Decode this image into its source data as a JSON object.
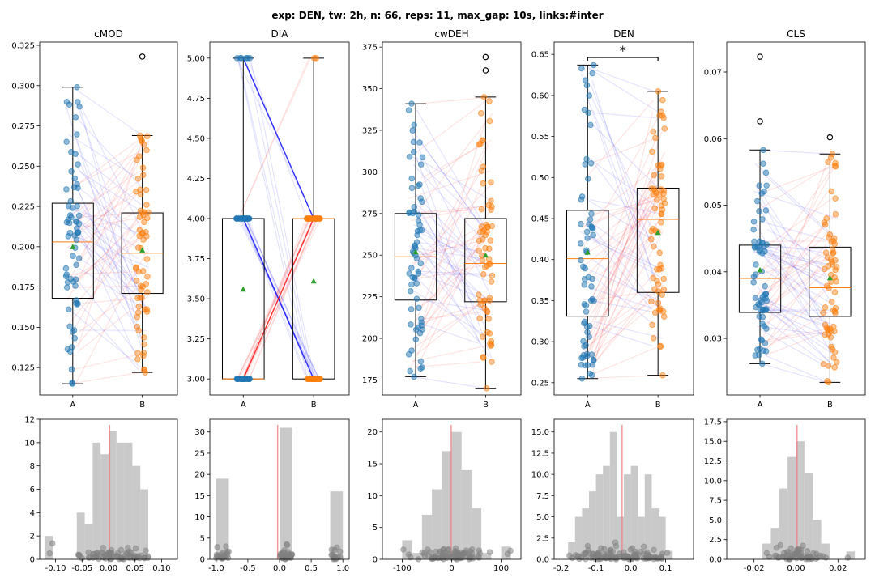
{
  "suptitle": "exp: DEN, tw: 2h, n: 66, reps: 11, max_gap: 10s, links:#inter",
  "colors": {
    "A": "#1f77b4",
    "B": "#ff7f0e",
    "median": "#ff7f0e",
    "mean": "#2ca02c",
    "line_up": "#ff0000",
    "line_down": "#0000ff",
    "hist": "#bfbfbf",
    "zero_line": "#f08080",
    "jitter": "#808080"
  },
  "chart_data": [
    {
      "type": "box",
      "title": "cMOD",
      "categories": [
        "A",
        "B"
      ],
      "ylim": [
        0.108,
        0.327
      ],
      "yticks": [
        "0.125",
        "0.150",
        "0.175",
        "0.200",
        "0.225",
        "0.250",
        "0.275",
        "0.300",
        "0.325"
      ],
      "boxes": [
        {
          "group": "A",
          "whislo": 0.115,
          "q1": 0.168,
          "median": 0.203,
          "q3": 0.227,
          "whishi": 0.299,
          "mean": 0.2,
          "fliers": []
        },
        {
          "group": "B",
          "whislo": 0.122,
          "q1": 0.171,
          "median": 0.196,
          "q3": 0.221,
          "whishi": 0.269,
          "mean": 0.198,
          "fliers": [
            0.318
          ]
        }
      ]
    },
    {
      "type": "box",
      "title": "DIA",
      "categories": [
        "A",
        "B"
      ],
      "ylim": [
        2.9,
        5.1
      ],
      "yticks": [
        "3.00",
        "3.25",
        "3.50",
        "3.75",
        "4.00",
        "4.25",
        "4.50",
        "4.75",
        "5.00"
      ],
      "boxes": [
        {
          "group": "A",
          "whislo": 3.0,
          "q1": 3.0,
          "median": 3.0,
          "q3": 4.0,
          "whishi": 5.0,
          "mean": 3.56,
          "fliers": []
        },
        {
          "group": "B",
          "whislo": 3.0,
          "q1": 3.0,
          "median": 4.0,
          "q3": 4.0,
          "whishi": 5.0,
          "mean": 3.61,
          "fliers": []
        }
      ],
      "strong_links": [
        {
          "a": 5.0,
          "b": 4.0,
          "color": "line_down"
        },
        {
          "a": 4.0,
          "b": 3.0,
          "color": "line_down"
        },
        {
          "a": 3.0,
          "b": 4.0,
          "color": "line_up"
        }
      ]
    },
    {
      "type": "box",
      "title": "cwDEH",
      "categories": [
        "A",
        "B"
      ],
      "ylim": [
        166,
        378
      ],
      "yticks": [
        "175",
        "200",
        "225",
        "250",
        "275",
        "300",
        "325",
        "350",
        "375"
      ],
      "boxes": [
        {
          "group": "A",
          "whislo": 177,
          "q1": 223,
          "median": 249,
          "q3": 275,
          "whishi": 341,
          "mean": 252,
          "fliers": []
        },
        {
          "group": "B",
          "whislo": 170,
          "q1": 222,
          "median": 245,
          "q3": 272,
          "whishi": 345,
          "mean": 250,
          "fliers": [
            361,
            369
          ]
        }
      ]
    },
    {
      "type": "box",
      "title": "DEN",
      "categories": [
        "A",
        "B"
      ],
      "ylim": [
        0.235,
        0.665
      ],
      "yticks": [
        "0.25",
        "0.30",
        "0.35",
        "0.40",
        "0.45",
        "0.50",
        "0.55",
        "0.60",
        "0.65"
      ],
      "boxes": [
        {
          "group": "A",
          "whislo": 0.255,
          "q1": 0.331,
          "median": 0.401,
          "q3": 0.46,
          "whishi": 0.637,
          "mean": 0.409,
          "fliers": []
        },
        {
          "group": "B",
          "whislo": 0.259,
          "q1": 0.36,
          "median": 0.449,
          "q3": 0.487,
          "whishi": 0.605,
          "mean": 0.433,
          "fliers": []
        }
      ],
      "significance": "*"
    },
    {
      "type": "box",
      "title": "CLS",
      "categories": [
        "A",
        "B"
      ],
      "ylim": [
        0.0215,
        0.0745
      ],
      "yticks": [
        "0.03",
        "0.04",
        "0.05",
        "0.06",
        "0.07"
      ],
      "boxes": [
        {
          "group": "A",
          "whislo": 0.0262,
          "q1": 0.0339,
          "median": 0.039,
          "q3": 0.044,
          "whishi": 0.0583,
          "mean": 0.0403,
          "fliers": [
            0.0626,
            0.0723
          ]
        },
        {
          "group": "B",
          "whislo": 0.0234,
          "q1": 0.0333,
          "median": 0.0376,
          "q3": 0.0437,
          "whishi": 0.0577,
          "mean": 0.0391,
          "fliers": [
            0.0602
          ]
        }
      ]
    },
    {
      "type": "bar",
      "subtype": "histogram",
      "xlim": [
        -0.13,
        0.13
      ],
      "ylim": [
        0,
        12
      ],
      "xticks": [
        "-0.10",
        "-0.05",
        "0.00",
        "0.05",
        "0.10"
      ],
      "yticks": [
        "0",
        "2",
        "4",
        "6",
        "8",
        "10",
        "12"
      ],
      "bins": [
        [
          -0.12,
          -0.105,
          2
        ],
        [
          -0.06,
          -0.045,
          4
        ],
        [
          -0.045,
          -0.03,
          3
        ],
        [
          -0.03,
          -0.015,
          10
        ],
        [
          -0.015,
          0,
          9
        ],
        [
          0,
          0.015,
          11
        ],
        [
          0.015,
          0.03,
          10
        ],
        [
          0.03,
          0.045,
          10
        ],
        [
          0.045,
          0.06,
          8
        ],
        [
          0.06,
          0.075,
          6
        ]
      ],
      "refline": 0.002
    },
    {
      "type": "bar",
      "subtype": "histogram",
      "xlim": [
        -1.1,
        1.1
      ],
      "ylim": [
        0,
        33
      ],
      "xticks": [
        "-1.0",
        "-0.5",
        "0.0",
        "0.5",
        "1.0"
      ],
      "yticks": [
        "0",
        "5",
        "10",
        "15",
        "20",
        "25",
        "30"
      ],
      "bins": [
        [
          -1.0,
          -0.8,
          19
        ],
        [
          0.0,
          0.2,
          31
        ],
        [
          0.8,
          1.0,
          16
        ]
      ],
      "refline": -0.03
    },
    {
      "type": "bar",
      "subtype": "histogram",
      "xlim": [
        -140,
        140
      ],
      "ylim": [
        0,
        22
      ],
      "xticks": [
        "-100",
        "0",
        "100"
      ],
      "yticks": [
        "0",
        "5",
        "10",
        "15",
        "20"
      ],
      "bins": [
        [
          -100,
          -80,
          3
        ],
        [
          -80,
          -60,
          1
        ],
        [
          -60,
          -40,
          7
        ],
        [
          -40,
          -20,
          11
        ],
        [
          -20,
          0,
          17
        ],
        [
          0,
          20,
          20
        ],
        [
          20,
          40,
          14
        ],
        [
          40,
          60,
          8
        ],
        [
          60,
          80,
          1
        ],
        [
          80,
          100,
          0
        ],
        [
          100,
          120,
          2
        ]
      ],
      "refline": -1
    },
    {
      "type": "bar",
      "subtype": "histogram",
      "xlim": [
        -0.22,
        0.18
      ],
      "ylim": [
        0,
        16.5
      ],
      "xticks": [
        "-0.2",
        "-0.1",
        "0.0",
        "0.1"
      ],
      "yticks": [
        "0.0",
        "2.5",
        "5.0",
        "7.5",
        "10.0",
        "12.5",
        "15.0"
      ],
      "bins": [
        [
          -0.18,
          -0.16,
          2
        ],
        [
          -0.16,
          -0.14,
          5
        ],
        [
          -0.14,
          -0.12,
          6
        ],
        [
          -0.12,
          -0.1,
          8
        ],
        [
          -0.1,
          -0.08,
          10
        ],
        [
          -0.08,
          -0.06,
          11
        ],
        [
          -0.06,
          -0.04,
          15
        ],
        [
          -0.04,
          -0.02,
          5
        ],
        [
          -0.02,
          0,
          10
        ],
        [
          0,
          0.02,
          11
        ],
        [
          0.02,
          0.04,
          5
        ],
        [
          0.04,
          0.06,
          10
        ],
        [
          0.06,
          0.08,
          6
        ],
        [
          0.08,
          0.1,
          5
        ],
        [
          0.1,
          0.12,
          1
        ]
      ],
      "refline": -0.025
    },
    {
      "type": "bar",
      "subtype": "histogram",
      "xlim": [
        -0.033,
        0.033
      ],
      "ylim": [
        0,
        17.8
      ],
      "xticks": [
        "-0.02",
        "0.00",
        "0.02"
      ],
      "yticks": [
        "0.0",
        "2.5",
        "5.0",
        "7.5",
        "10.0",
        "12.5",
        "15.0",
        "17.5"
      ],
      "bins": [
        [
          -0.016,
          -0.012,
          2
        ],
        [
          -0.012,
          -0.008,
          4
        ],
        [
          -0.008,
          -0.004,
          9
        ],
        [
          -0.004,
          0,
          13
        ],
        [
          0,
          0.004,
          15
        ],
        [
          0.004,
          0.008,
          11
        ],
        [
          0.008,
          0.012,
          5
        ],
        [
          0.012,
          0.016,
          2
        ],
        [
          0.016,
          0.02,
          0
        ],
        [
          0.02,
          0.024,
          0
        ],
        [
          0.024,
          0.028,
          1
        ]
      ],
      "refline": 0.0005
    }
  ]
}
